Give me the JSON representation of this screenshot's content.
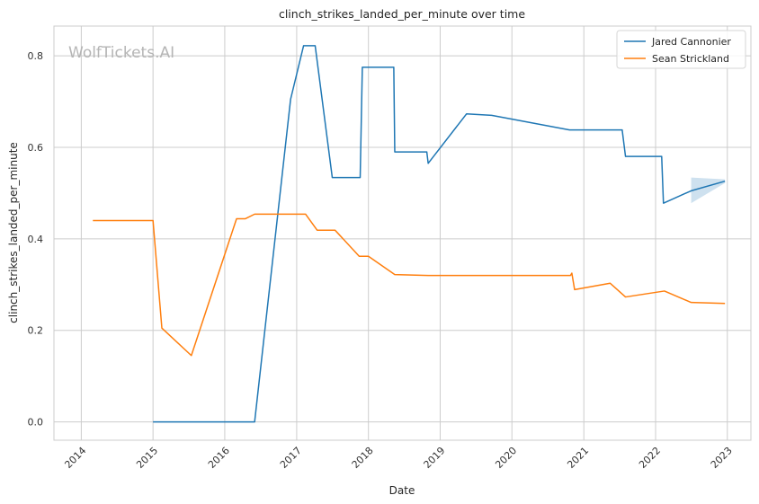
{
  "chart_data": {
    "type": "line",
    "title": "clinch_strikes_landed_per_minute over time",
    "xlabel": "Date",
    "ylabel": "clinch_strikes_landed_per_minute",
    "watermark": "WolfTickets.AI",
    "x_ticks": [
      "2014",
      "2015",
      "2016",
      "2017",
      "2018",
      "2019",
      "2020",
      "2021",
      "2022",
      "2023"
    ],
    "y_ticks": [
      "0.0",
      "0.2",
      "0.4",
      "0.6",
      "0.8"
    ],
    "xlim": [
      "2013-08-15",
      "2023-05-01"
    ],
    "ylim": [
      -0.04,
      0.865
    ],
    "grid": true,
    "legend_position": "top-right",
    "series": [
      {
        "name": "Jared Cannonier",
        "color": "#1f77b4",
        "points": [
          [
            "2015-01-01",
            0.0
          ],
          [
            "2016-06-01",
            0.0
          ],
          [
            "2016-12-01",
            0.705
          ],
          [
            "2017-02-05",
            0.822
          ],
          [
            "2017-04-05",
            0.822
          ],
          [
            "2017-07-01",
            0.534
          ],
          [
            "2017-11-20",
            0.534
          ],
          [
            "2017-12-01",
            0.775
          ],
          [
            "2018-05-10",
            0.775
          ],
          [
            "2018-05-15",
            0.59
          ],
          [
            "2018-10-25",
            0.59
          ],
          [
            "2018-11-01",
            0.565
          ],
          [
            "2019-05-15",
            0.673
          ],
          [
            "2019-09-20",
            0.67
          ],
          [
            "2020-10-20",
            0.638
          ],
          [
            "2021-07-15",
            0.638
          ],
          [
            "2021-08-01",
            0.58
          ],
          [
            "2022-02-01",
            0.58
          ],
          [
            "2022-02-10",
            0.478
          ],
          [
            "2022-07-01",
            0.505
          ],
          [
            "2022-12-20",
            0.526
          ]
        ],
        "band": [
          [
            "2022-07-01",
            0.478,
            0.534
          ],
          [
            "2022-12-20",
            0.522,
            0.53
          ]
        ]
      },
      {
        "name": "Sean Strickland",
        "color": "#ff7f0e",
        "points": [
          [
            "2014-03-01",
            0.44
          ],
          [
            "2015-01-01",
            0.44
          ],
          [
            "2015-02-15",
            0.205
          ],
          [
            "2015-07-15",
            0.145
          ],
          [
            "2016-03-01",
            0.444
          ],
          [
            "2016-04-15",
            0.444
          ],
          [
            "2016-06-01",
            0.454
          ],
          [
            "2017-02-15",
            0.454
          ],
          [
            "2017-04-15",
            0.419
          ],
          [
            "2017-07-15",
            0.419
          ],
          [
            "2017-11-15",
            0.362
          ],
          [
            "2018-01-01",
            0.362
          ],
          [
            "2018-05-15",
            0.322
          ],
          [
            "2018-11-01",
            0.32
          ],
          [
            "2020-10-25",
            0.32
          ],
          [
            "2020-11-01",
            0.325
          ],
          [
            "2020-11-15",
            0.289
          ],
          [
            "2021-05-15",
            0.303
          ],
          [
            "2021-08-01",
            0.273
          ],
          [
            "2022-02-15",
            0.286
          ],
          [
            "2022-07-01",
            0.261
          ],
          [
            "2022-12-20",
            0.259
          ]
        ]
      }
    ]
  }
}
